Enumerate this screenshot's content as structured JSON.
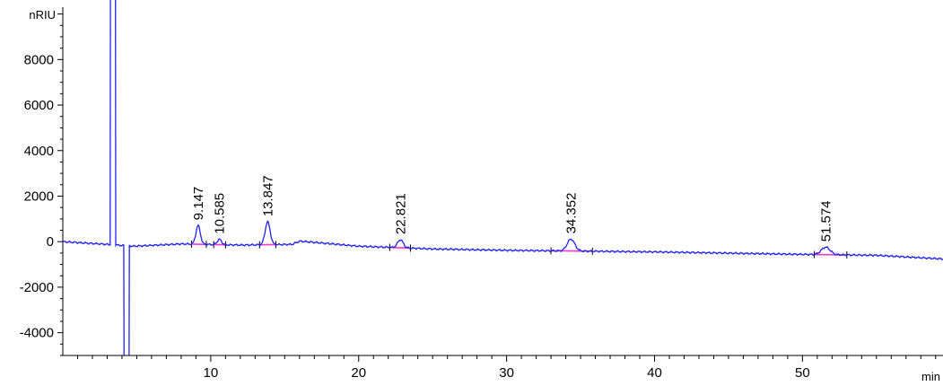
{
  "chart_data": {
    "type": "line",
    "title": "",
    "xlabel": "min",
    "ylabel": "nRIU",
    "xlim": [
      0,
      59.5
    ],
    "ylim": [
      -5000,
      10300
    ],
    "x_ticks": [
      10,
      20,
      30,
      40,
      50
    ],
    "y_ticks": [
      -4000,
      -2000,
      0,
      2000,
      4000,
      6000,
      8000
    ],
    "y_ticks_labeled": true,
    "grid": false,
    "colors": {
      "trace": "#2222ee",
      "baseline": "#ff33cc"
    },
    "peaks": [
      {
        "rt": 9.147,
        "label": "9.147",
        "height": 820,
        "width": 0.35,
        "baseline_from": 8.7,
        "baseline_to": 9.7
      },
      {
        "rt": 10.585,
        "label": "10.585",
        "height": 230,
        "width": 0.35,
        "baseline_from": 10.2,
        "baseline_to": 11.0
      },
      {
        "rt": 13.847,
        "label": "13.847",
        "height": 1000,
        "width": 0.4,
        "baseline_from": 13.3,
        "baseline_to": 14.4
      },
      {
        "rt": 22.821,
        "label": "22.821",
        "height": 350,
        "width": 0.45,
        "baseline_from": 22.1,
        "baseline_to": 23.5
      },
      {
        "rt": 34.352,
        "label": "34.352",
        "height": 520,
        "width": 0.6,
        "baseline_from": 33.0,
        "baseline_to": 35.8
      },
      {
        "rt": 51.574,
        "label": "51.574",
        "height": 330,
        "width": 0.7,
        "baseline_from": 50.8,
        "baseline_to": 53.0
      }
    ],
    "solvent_front": {
      "positive_at": 3.4,
      "negative_at": 4.3
    },
    "baseline_points": [
      [
        0,
        0
      ],
      [
        3.0,
        -120
      ],
      [
        4.8,
        -200
      ],
      [
        8.0,
        -100
      ],
      [
        12.0,
        -150
      ],
      [
        15.5,
        -120
      ],
      [
        16.0,
        20
      ],
      [
        17.0,
        -30
      ],
      [
        20.0,
        -200
      ],
      [
        25.0,
        -320
      ],
      [
        30.0,
        -380
      ],
      [
        40.0,
        -450
      ],
      [
        50.0,
        -560
      ],
      [
        55.0,
        -600
      ],
      [
        59.5,
        -760
      ]
    ]
  }
}
